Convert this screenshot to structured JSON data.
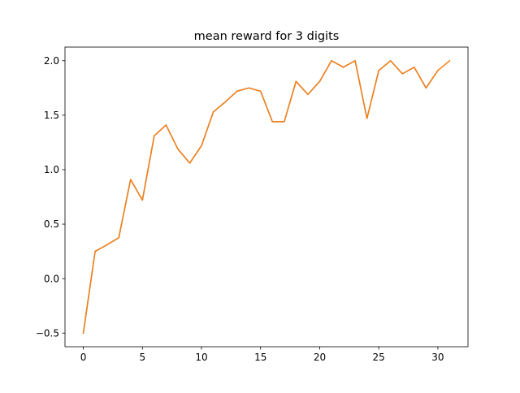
{
  "chart_data": {
    "type": "line",
    "title": "mean reward for 3 digits",
    "xlabel": "",
    "ylabel": "",
    "xlim": [
      -1.55,
      32.55
    ],
    "ylim": [
      -0.625,
      2.125
    ],
    "x_ticks": [
      0,
      5,
      10,
      15,
      20,
      25,
      30
    ],
    "x_tick_labels": [
      "0",
      "5",
      "10",
      "15",
      "20",
      "25",
      "30"
    ],
    "y_ticks": [
      -0.5,
      0.0,
      0.5,
      1.0,
      1.5,
      2.0
    ],
    "y_tick_labels": [
      "−0.5",
      "0.0",
      "0.5",
      "1.0",
      "1.5",
      "2.0"
    ],
    "grid": false,
    "legend": "none",
    "series": [
      {
        "color": "#1f77b4",
        "x": [
          0,
          1,
          2,
          3,
          4,
          5,
          6,
          7,
          8,
          9,
          10,
          11,
          12,
          13,
          14,
          15,
          16,
          17,
          18,
          19,
          20,
          21,
          22,
          23,
          24,
          25,
          26,
          27,
          28,
          29,
          30
        ],
        "values": [
          -0.5,
          0.25,
          0.31,
          0.375,
          0.91,
          0.72,
          1.31,
          1.41,
          1.19,
          1.06,
          1.22,
          1.53,
          1.62,
          1.72,
          1.75,
          1.72,
          1.44,
          1.44,
          1.81,
          1.69,
          1.81,
          2.0,
          1.94,
          2.0,
          1.47,
          1.91,
          2.0,
          1.88,
          1.94,
          1.75,
          1.91
        ]
      },
      {
        "color": "#ff7f0e",
        "x": [
          0,
          1,
          2,
          3,
          4,
          5,
          6,
          7,
          8,
          9,
          10,
          11,
          12,
          13,
          14,
          15,
          16,
          17,
          18,
          19,
          20,
          21,
          22,
          23,
          24,
          25,
          26,
          27,
          28,
          29,
          30,
          31
        ],
        "values": [
          -0.5,
          0.25,
          0.31,
          0.375,
          0.91,
          0.72,
          1.31,
          1.41,
          1.19,
          1.06,
          1.22,
          1.53,
          1.62,
          1.72,
          1.75,
          1.72,
          1.44,
          1.44,
          1.81,
          1.69,
          1.81,
          2.0,
          1.94,
          2.0,
          1.47,
          1.91,
          2.0,
          1.88,
          1.94,
          1.75,
          1.91,
          2.0
        ]
      }
    ]
  }
}
